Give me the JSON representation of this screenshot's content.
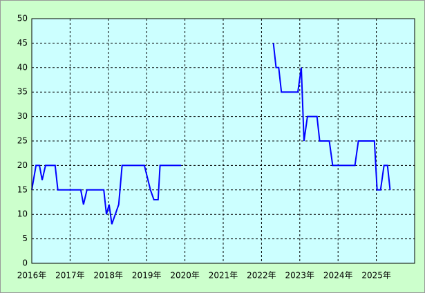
{
  "chart_data": {
    "type": "line",
    "x": [
      2016.0,
      2016.11,
      2016.2,
      2016.27,
      2016.36,
      2016.61,
      2016.68,
      2017.28,
      2017.35,
      2017.44,
      2017.88,
      2017.95,
      2018.02,
      2018.09,
      2018.27,
      2018.36,
      2018.94,
      2019.1,
      2019.19,
      2019.3,
      2019.35,
      2019.9,
      2021.0,
      2022.31,
      2022.38,
      2022.45,
      2022.52,
      2022.95,
      2023.04,
      2023.11,
      2023.2,
      2023.45,
      2023.52,
      2023.77,
      2023.86,
      2024.44,
      2024.53,
      2024.95,
      2025.02,
      2025.11,
      2025.2,
      2025.29,
      2025.36
    ],
    "values": [
      15,
      20,
      20,
      17,
      20,
      20,
      15,
      15,
      12,
      15,
      15,
      10,
      12,
      8,
      12,
      20,
      20,
      15,
      13,
      13,
      20,
      20,
      null,
      45,
      40,
      40,
      35,
      35,
      40,
      25,
      30,
      30,
      25,
      25,
      20,
      20,
      25,
      25,
      15,
      15,
      20,
      20,
      15
    ],
    "color": "#0000ff",
    "xlim": [
      2016,
      2026
    ],
    "xticks": [
      {
        "value": 2016,
        "label": "2016年"
      },
      {
        "value": 2017,
        "label": "2017年"
      },
      {
        "value": 2018,
        "label": "2018年"
      },
      {
        "value": 2019,
        "label": "2019年"
      },
      {
        "value": 2020,
        "label": "2020年"
      },
      {
        "value": 2021,
        "label": "2021年"
      },
      {
        "value": 2022,
        "label": "2022年"
      },
      {
        "value": 2023,
        "label": "2023年"
      },
      {
        "value": 2024,
        "label": "2024年"
      },
      {
        "value": 2025,
        "label": "2025年"
      }
    ],
    "ylim": [
      0,
      50
    ],
    "yticks": [
      0,
      5,
      10,
      15,
      20,
      25,
      30,
      35,
      40,
      45,
      50
    ],
    "grid": true
  }
}
